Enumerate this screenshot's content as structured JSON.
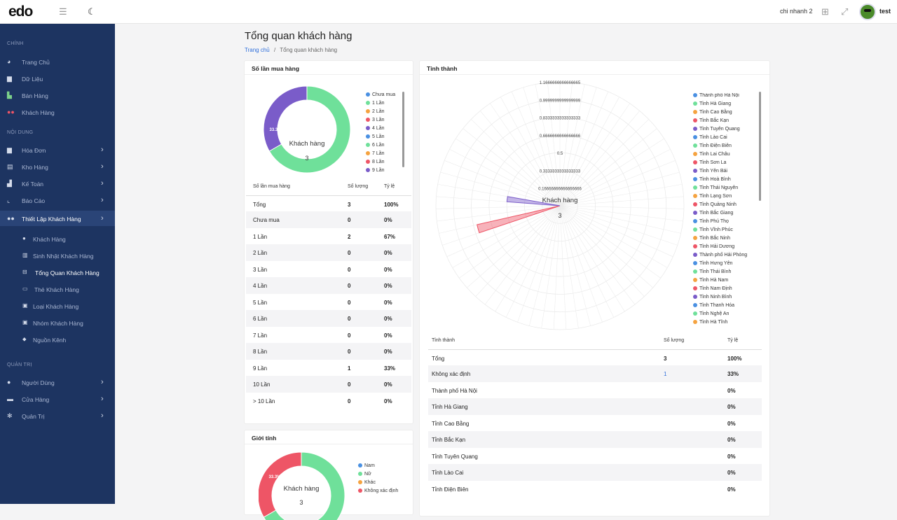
{
  "topbar": {
    "logo": "edo",
    "branch": "chi nhanh 2",
    "user": "test"
  },
  "sidebar": {
    "sections": [
      {
        "label": "CHÍNH",
        "items": [
          {
            "label": "Trang Chủ",
            "icon": "dashboard-icon"
          },
          {
            "label": "Dữ Liệu",
            "icon": "file-icon"
          },
          {
            "label": "Bán Hàng",
            "icon": "cart-icon"
          },
          {
            "label": "Khách Hàng",
            "icon": "users-icon"
          }
        ]
      },
      {
        "label": "NỘI DUNG",
        "items": [
          {
            "label": "Hóa Đơn",
            "icon": "invoice-icon"
          },
          {
            "label": "Kho Hàng",
            "icon": "warehouse-icon"
          },
          {
            "label": "Kế Toán",
            "icon": "accounting-icon"
          },
          {
            "label": "Báo Cáo",
            "icon": "report-icon"
          },
          {
            "label": "Thiết Lập Khách Hàng",
            "icon": "users-icon"
          }
        ]
      },
      {
        "label": "QUẢN TRỊ",
        "items": [
          {
            "label": "Người Dùng",
            "icon": "user-icon"
          },
          {
            "label": "Cửa Hàng",
            "icon": "store-icon"
          },
          {
            "label": "Quản Trị",
            "icon": "gear-icon"
          }
        ]
      }
    ],
    "subitems": [
      "Khách Hàng",
      "Sinh Nhật Khách Hàng",
      "Tổng Quan Khách Hàng",
      "Thẻ Khách Hàng",
      "Loại Khách Hàng",
      "Nhóm Khách Hàng",
      "Nguồn Kênh"
    ]
  },
  "page": {
    "title": "Tổng quan khách hàng",
    "breadcrumb_home": "Trang chủ",
    "breadcrumb_sep": "/",
    "breadcrumb_current": "Tổng quan khách hàng"
  },
  "purchases": {
    "title": "Số lần mua hàng",
    "center_label": "Khách hàng",
    "center_value": "3",
    "slice_labels": [
      "33.3%",
      "66.7%"
    ],
    "legend": [
      "Chưa mua",
      "1 Lần",
      "2 Lần",
      "3 Lần",
      "4 Lần",
      "5 Lần",
      "6 Lần",
      "7 Lần",
      "8 Lần",
      "9 Lần"
    ],
    "legend_colors": [
      "#4a90e2",
      "#6fe09a",
      "#f5a340",
      "#ee5566",
      "#7a5cc9",
      "#4a90e2",
      "#6fe09a",
      "#f5a340",
      "#ee5566",
      "#7a5cc9"
    ],
    "headers": [
      "Số lần mua hàng",
      "Số lượng",
      "Tỷ lệ"
    ],
    "rows": [
      [
        "Tổng",
        "3",
        "100%"
      ],
      [
        "Chưa mua",
        "0",
        "0%"
      ],
      [
        "1 Lần",
        "2",
        "67%"
      ],
      [
        "2 Lần",
        "0",
        "0%"
      ],
      [
        "3 Lần",
        "0",
        "0%"
      ],
      [
        "4 Lần",
        "0",
        "0%"
      ],
      [
        "5 Lần",
        "0",
        "0%"
      ],
      [
        "6 Lần",
        "0",
        "0%"
      ],
      [
        "7 Lần",
        "0",
        "0%"
      ],
      [
        "8 Lần",
        "0",
        "0%"
      ],
      [
        "9 Lần",
        "1",
        "33%"
      ],
      [
        "10 Lần",
        "0",
        "0%"
      ],
      [
        "> 10 Lần",
        "0",
        "0%"
      ]
    ]
  },
  "gender": {
    "title": "Giới tính",
    "center_label": "Khách hàng",
    "center_value": "3",
    "slice_label": "33.3%",
    "legend": [
      "Nam",
      "Nữ",
      "Khác",
      "Không xác định"
    ],
    "legend_colors": [
      "#4a90e2",
      "#6fe09a",
      "#f5a340",
      "#ee5566"
    ]
  },
  "province": {
    "title": "Tỉnh thành",
    "center_label": "Khách hàng",
    "center_value": "3",
    "legend": [
      "Thành phố Hà Nội",
      "Tỉnh Hà Giang",
      "Tỉnh Cao Bằng",
      "Tỉnh Bắc Kạn",
      "Tỉnh Tuyên Quang",
      "Tỉnh Lào Cai",
      "Tỉnh Điện Biên",
      "Tỉnh Lai Châu",
      "Tỉnh Sơn La",
      "Tỉnh Yên Bái",
      "Tỉnh Hoà Bình",
      "Tỉnh Thái Nguyên",
      "Tỉnh Lạng Sơn",
      "Tỉnh Quảng Ninh",
      "Tỉnh Bắc Giang",
      "Tỉnh Phú Thọ",
      "Tỉnh Vĩnh Phúc",
      "Tỉnh Bắc Ninh",
      "Tỉnh Hải Dương",
      "Thành phố Hải Phòng",
      "Tỉnh Hưng Yên",
      "Tỉnh Thái Bình",
      "Tỉnh Hà Nam",
      "Tỉnh Nam Định",
      "Tỉnh Ninh Bình",
      "Tỉnh Thanh Hóa",
      "Tỉnh Nghệ An",
      "Tỉnh Hà Tĩnh"
    ],
    "legend_colors": [
      "#4a90e2",
      "#6fe09a",
      "#f5a340",
      "#ee5566",
      "#7a5cc9"
    ],
    "headers": [
      "Tỉnh thành",
      "Số lượng",
      "Tỷ lệ"
    ],
    "rows": [
      [
        "Tổng",
        "3",
        "100%"
      ],
      [
        "Không xác định",
        "1",
        "33%"
      ],
      [
        "Thành phố Hà Nội",
        "",
        "0%"
      ],
      [
        "Tỉnh Hà Giang",
        "",
        "0%"
      ],
      [
        "Tỉnh Cao Bằng",
        "",
        "0%"
      ],
      [
        "Tỉnh Bắc Kạn",
        "",
        "0%"
      ],
      [
        "Tỉnh Tuyên Quang",
        "",
        "0%"
      ],
      [
        "Tỉnh Lào Cai",
        "",
        "0%"
      ],
      [
        "Tỉnh Điện Biên",
        "",
        "0%"
      ]
    ]
  },
  "chart_data": [
    {
      "type": "pie",
      "title": "Số lần mua hàng",
      "categories": [
        "Chưa mua",
        "1 Lần",
        "2 Lần",
        "3 Lần",
        "4 Lần",
        "5 Lần",
        "6 Lần",
        "7 Lần",
        "8 Lần",
        "9 Lần",
        "10 Lần",
        "> 10 Lần"
      ],
      "values": [
        0,
        2,
        0,
        0,
        0,
        0,
        0,
        0,
        0,
        1,
        0,
        0
      ],
      "colors": {
        "1 Lần": "#6fe09a",
        "9 Lần": "#7a5cc9"
      }
    },
    {
      "type": "polar-area",
      "title": "Tỉnh thành",
      "rlabels": [
        "1.1666666666666665",
        "0.9999999999999999",
        "0.8333333333333333",
        "0.6666666666666666",
        "0.5",
        "0.3333333333333333",
        "0.16666666666666666"
      ],
      "rmax": 1.1666666666666665,
      "slices": 63,
      "series": [
        {
          "values_by_slice": {
            "48": 0.5,
            "44": 0.8
          }
        }
      ],
      "colors": {
        "44": "#ee5566",
        "48": "#7a5cc9"
      }
    },
    {
      "type": "pie",
      "title": "Giới tính",
      "categories": [
        "Nam",
        "Nữ",
        "Khác",
        "Không xác định"
      ],
      "values": [
        0,
        2,
        0,
        1
      ]
    }
  ]
}
